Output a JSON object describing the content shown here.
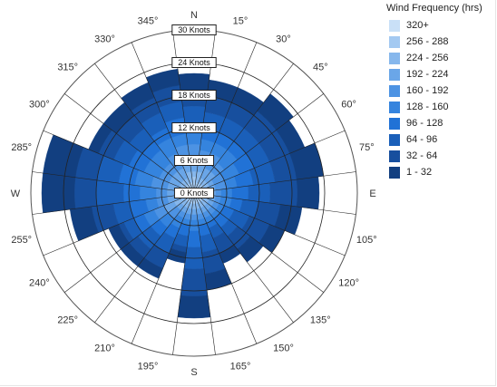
{
  "chart_data": {
    "type": "wind-rose",
    "legend": {
      "title": "Wind Frequency (hrs)",
      "bins": [
        {
          "label": "320+",
          "color": "#c9e0f7"
        },
        {
          "label": "256 - 288",
          "color": "#a3c9f1"
        },
        {
          "label": "224 - 256",
          "color": "#86b7ec"
        },
        {
          "label": "192 - 224",
          "color": "#6aa6e8"
        },
        {
          "label": "160 - 192",
          "color": "#4d93e3"
        },
        {
          "label": "128 - 160",
          "color": "#3584de"
        },
        {
          "label": "96 - 128",
          "color": "#2172d6"
        },
        {
          "label": "64 - 96",
          "color": "#1a5fb9"
        },
        {
          "label": "32 - 64",
          "color": "#174f9e"
        },
        {
          "label": "1 - 32",
          "color": "#123f80"
        }
      ]
    },
    "speed_rings": [
      "0 Knots",
      "6 Knots",
      "12 Knots",
      "18 Knots",
      "24 Knots",
      "30 Knots"
    ],
    "speed_max": 30,
    "direction_labels": [
      "N",
      "15°",
      "30°",
      "45°",
      "60°",
      "75°",
      "E",
      "105°",
      "120°",
      "135°",
      "150°",
      "165°",
      "S",
      "195°",
      "210°",
      "225°",
      "240°",
      "255°",
      "W",
      "285°",
      "300°",
      "315°",
      "330°",
      "345°"
    ],
    "directions_deg": [
      0,
      15,
      30,
      45,
      60,
      75,
      90,
      105,
      120,
      135,
      150,
      165,
      180,
      195,
      210,
      225,
      240,
      255,
      270,
      285,
      300,
      315,
      330,
      345
    ],
    "sector_max_speed_knots": [
      22,
      21,
      21,
      23,
      22,
      24,
      23,
      20,
      18,
      16,
      14,
      18,
      23,
      13,
      17,
      17,
      17,
      23,
      28,
      28,
      21,
      21,
      22,
      23
    ],
    "bin_band_boundaries_knots": [
      [
        1,
        3,
        4,
        6,
        9,
        11,
        13,
        16,
        19
      ],
      [
        1,
        2,
        4,
        6,
        8,
        10,
        12,
        15,
        18
      ],
      [
        1,
        2,
        3,
        5,
        8,
        10,
        12,
        15,
        18
      ],
      [
        1,
        2,
        3,
        5,
        7,
        10,
        12,
        15,
        19
      ],
      [
        1,
        2,
        3,
        4,
        6,
        9,
        12,
        15,
        19
      ],
      [
        1,
        2,
        3,
        4,
        6,
        8,
        11,
        15,
        19
      ],
      [
        1,
        2,
        3,
        4,
        5,
        7,
        10,
        14,
        19
      ],
      [
        1,
        2,
        3,
        4,
        5,
        7,
        9,
        12,
        16
      ],
      [
        1,
        2,
        3,
        4,
        5,
        6,
        8,
        11,
        15
      ],
      [
        1,
        2,
        3,
        4,
        5,
        6,
        8,
        10,
        13
      ],
      [
        1,
        2,
        3,
        4,
        5,
        6,
        7,
        9,
        12
      ],
      [
        1,
        2,
        3,
        4,
        5,
        6,
        8,
        11,
        15
      ],
      [
        1,
        2,
        3,
        4,
        5,
        7,
        10,
        14,
        19
      ],
      [
        1,
        2,
        3,
        4,
        5,
        6,
        8,
        10,
        11
      ],
      [
        1,
        2,
        3,
        4,
        5,
        7,
        9,
        12,
        15
      ],
      [
        1,
        2,
        3,
        4,
        6,
        8,
        10,
        13,
        15
      ],
      [
        1,
        2,
        4,
        6,
        8,
        10,
        12,
        14,
        15
      ],
      [
        1,
        2,
        3,
        5,
        7,
        9,
        12,
        15,
        19
      ],
      [
        1,
        2,
        3,
        5,
        7,
        10,
        13,
        18,
        22
      ],
      [
        1,
        2,
        3,
        5,
        8,
        11,
        14,
        18,
        22
      ],
      [
        1,
        2,
        3,
        5,
        7,
        10,
        13,
        16,
        19
      ],
      [
        1,
        2,
        3,
        5,
        7,
        10,
        12,
        15,
        18
      ],
      [
        1,
        2,
        3,
        5,
        8,
        11,
        13,
        16,
        19
      ],
      [
        1,
        2,
        4,
        6,
        9,
        11,
        14,
        17,
        20
      ]
    ]
  }
}
